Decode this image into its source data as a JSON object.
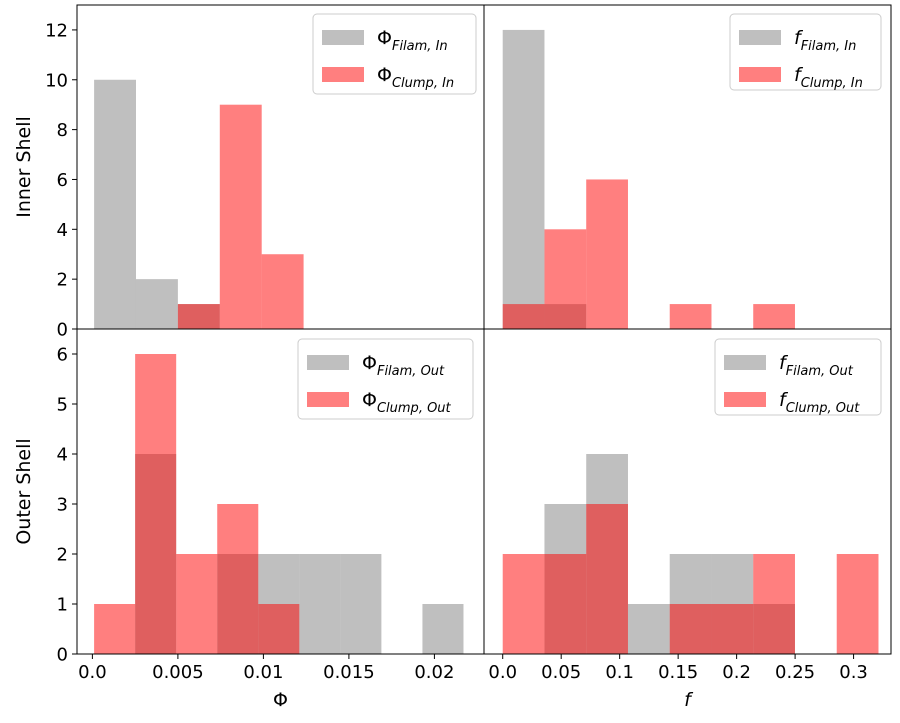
{
  "chart_data": [
    {
      "panel": "top-left",
      "type": "histogram",
      "ylabel": "Inner Shell",
      "xlabel": "",
      "xlim": [
        -0.0009,
        0.0229
      ],
      "ylim": [
        0,
        13
      ],
      "yticks": [
        0,
        2,
        4,
        6,
        8,
        10,
        12
      ],
      "legend_position": "top-right",
      "series": [
        {
          "name": "Φ",
          "sub": "Filam, In",
          "italic_main": false,
          "color": "#808080",
          "bins": [
            [
              0.0001,
              0.00255,
              10
            ],
            [
              0.00255,
              0.005,
              2
            ],
            [
              0.005,
              0.00745,
              1
            ]
          ]
        },
        {
          "name": "Φ",
          "sub": "Clump, In",
          "italic_main": false,
          "color": "#ff0000",
          "bins": [
            [
              0.005,
              0.00745,
              1
            ],
            [
              0.00745,
              0.0099,
              9
            ],
            [
              0.0099,
              0.01235,
              3
            ]
          ]
        }
      ]
    },
    {
      "panel": "top-right",
      "type": "histogram",
      "ylabel": "",
      "xlabel": "",
      "xlim": [
        -0.016,
        0.332
      ],
      "ylim": [
        0,
        13
      ],
      "yticks": [],
      "legend_position": "top-right",
      "series": [
        {
          "name": "f",
          "sub": "Filam, In",
          "italic_main": true,
          "color": "#808080",
          "bins": [
            [
              0.0,
              0.0357,
              12
            ],
            [
              0.0357,
              0.0714,
              1
            ]
          ]
        },
        {
          "name": "f",
          "sub": "Clump, In",
          "italic_main": true,
          "color": "#ff0000",
          "bins": [
            [
              0.0,
              0.0357,
              1
            ],
            [
              0.0357,
              0.0714,
              4
            ],
            [
              0.0714,
              0.1071,
              6
            ],
            [
              0.1428,
              0.1785,
              1
            ],
            [
              0.2142,
              0.2499,
              1
            ]
          ]
        }
      ]
    },
    {
      "panel": "bottom-left",
      "type": "histogram",
      "ylabel": "Outer Shell",
      "xlabel": "Φ",
      "xlim": [
        -0.0009,
        0.0229
      ],
      "ylim": [
        0,
        6.5
      ],
      "yticks": [
        0,
        1,
        2,
        3,
        4,
        5,
        6
      ],
      "xticks": [
        0,
        0.005,
        0.01,
        0.015,
        0.02
      ],
      "xtick_labels": [
        "0.0",
        "0.005",
        "0.01",
        "0.015",
        "0.02"
      ],
      "legend_position": "top-right",
      "series": [
        {
          "name": "Φ",
          "sub": "Filam, Out",
          "italic_main": false,
          "color": "#808080",
          "bins": [
            [
              0.0025,
              0.0049,
              4
            ],
            [
              0.0073,
              0.0097,
              2
            ],
            [
              0.0097,
              0.0121,
              2
            ],
            [
              0.0121,
              0.0145,
              2
            ],
            [
              0.0145,
              0.0169,
              2
            ],
            [
              0.0193,
              0.0217,
              1
            ]
          ]
        },
        {
          "name": "Φ",
          "sub": "Clump, Out",
          "italic_main": false,
          "color": "#ff0000",
          "bins": [
            [
              0.0001,
              0.0025,
              1
            ],
            [
              0.0025,
              0.0049,
              6
            ],
            [
              0.0049,
              0.0073,
              2
            ],
            [
              0.0073,
              0.0097,
              3
            ],
            [
              0.0097,
              0.0121,
              1
            ]
          ]
        }
      ]
    },
    {
      "panel": "bottom-right",
      "type": "histogram",
      "ylabel": "",
      "xlabel": "f",
      "xlim": [
        -0.016,
        0.332
      ],
      "ylim": [
        0,
        6.5
      ],
      "yticks": [],
      "xticks": [
        0,
        0.05,
        0.1,
        0.15,
        0.2,
        0.25,
        0.3
      ],
      "xtick_labels": [
        "0.0",
        "0.05",
        "0.1",
        "0.15",
        "0.2",
        "0.25",
        "0.3"
      ],
      "legend_position": "top-right",
      "series": [
        {
          "name": "f",
          "sub": "Filam, Out",
          "italic_main": true,
          "color": "#808080",
          "bins": [
            [
              0.0357,
              0.0714,
              3
            ],
            [
              0.0714,
              0.1071,
              4
            ],
            [
              0.1071,
              0.1428,
              1
            ],
            [
              0.1428,
              0.1785,
              2
            ],
            [
              0.1785,
              0.2142,
              2
            ],
            [
              0.2142,
              0.2499,
              1
            ]
          ]
        },
        {
          "name": "f",
          "sub": "Clump, Out",
          "italic_main": true,
          "color": "#ff0000",
          "bins": [
            [
              0.0,
              0.0357,
              2
            ],
            [
              0.0357,
              0.0714,
              2
            ],
            [
              0.0714,
              0.1071,
              3
            ],
            [
              0.1428,
              0.1785,
              1
            ],
            [
              0.1785,
              0.2142,
              1
            ],
            [
              0.2142,
              0.2499,
              2
            ],
            [
              0.2856,
              0.3213,
              2
            ]
          ]
        }
      ]
    }
  ]
}
